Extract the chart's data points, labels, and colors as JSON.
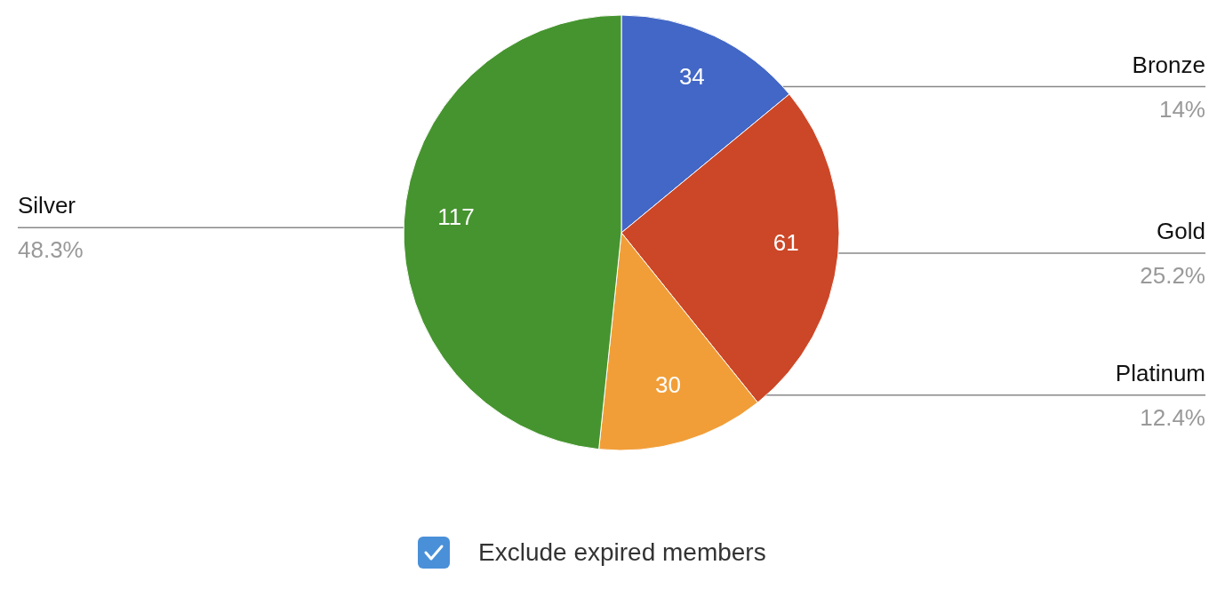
{
  "chart_data": {
    "type": "pie",
    "categories": [
      "Bronze",
      "Gold",
      "Platinum",
      "Silver"
    ],
    "values": [
      14,
      25.2,
      12.4,
      48.3
    ],
    "colors": [
      "#4267c6",
      "#cc4727",
      "#f19e38",
      "#46942f"
    ],
    "value_labels": [
      "14%",
      "25.2%",
      "12.4%",
      "48.3%"
    ],
    "legend": false,
    "annotations": [
      {
        "text": "34",
        "x": "Bronze"
      },
      {
        "text": "61",
        "x": "Gold"
      },
      {
        "text": "30",
        "x": "Platinum"
      },
      {
        "text": "117",
        "x": "Silver"
      },
      "Exclude expired members"
    ]
  }
}
